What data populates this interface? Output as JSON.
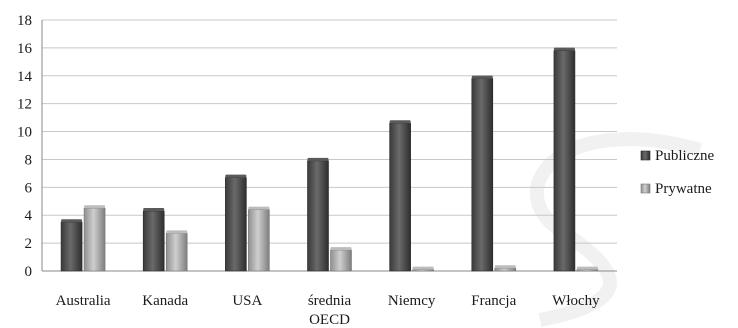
{
  "chart_data": {
    "type": "bar",
    "categories": [
      "Australia",
      "Kanada",
      "USA",
      "średnia OECD",
      "Niemcy",
      "Francja",
      "Włochy"
    ],
    "category_lines": [
      [
        "Australia"
      ],
      [
        "Kanada"
      ],
      [
        "USA"
      ],
      [
        "średnia",
        "OECD"
      ],
      [
        "Niemcy"
      ],
      [
        "Francja"
      ],
      [
        "Włochy"
      ]
    ],
    "series": [
      {
        "name": "Publiczne",
        "values": [
          3.5,
          4.3,
          6.7,
          7.9,
          10.6,
          13.8,
          15.8
        ],
        "color": "#4d4d4d"
      },
      {
        "name": "Prywatne",
        "values": [
          4.5,
          2.7,
          4.4,
          1.5,
          0.1,
          0.2,
          0.1
        ],
        "color": "#a9a9a9"
      }
    ],
    "ylim": [
      0,
      18
    ],
    "yticks": [
      0,
      2,
      4,
      6,
      8,
      10,
      12,
      14,
      16,
      18
    ],
    "title": "",
    "xlabel": "",
    "ylabel": "",
    "grid": true,
    "legend": "right"
  }
}
